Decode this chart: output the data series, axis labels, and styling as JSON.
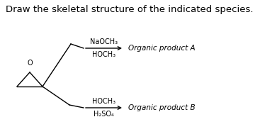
{
  "title": "Draw the skeletal structure of the indicated species.",
  "title_fontsize": 9.5,
  "background_color": "#ffffff",
  "text_color": "#000000",
  "reagent_A_line1": "NaOCH₃",
  "reagent_A_line2": "HOCH₃",
  "reagent_B_line1": "HOCH₃",
  "reagent_B_line2": "H₂SO₄",
  "product_A": "Organic product A",
  "product_B": "Organic product B",
  "lw": 1.0
}
